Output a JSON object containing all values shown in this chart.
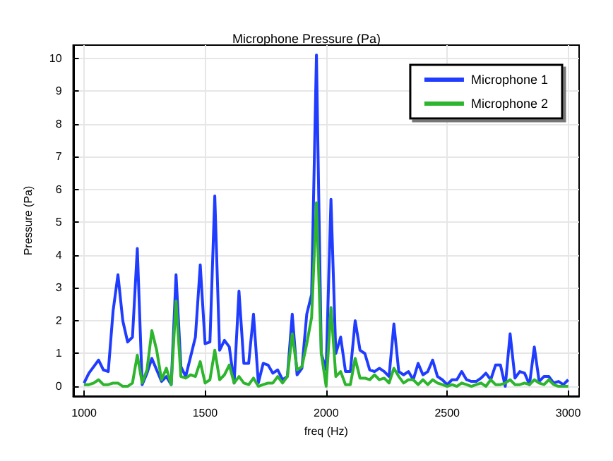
{
  "chart_data": {
    "type": "line",
    "title": "Microphone Pressure (Pa)",
    "xlabel": "freq (Hz)",
    "ylabel": "Pressure (Pa)",
    "x": [
      1000,
      1020,
      1040,
      1060,
      1080,
      1100,
      1120,
      1140,
      1160,
      1180,
      1200,
      1220,
      1240,
      1260,
      1280,
      1300,
      1320,
      1340,
      1360,
      1380,
      1400,
      1420,
      1440,
      1460,
      1480,
      1500,
      1520,
      1540,
      1560,
      1580,
      1600,
      1620,
      1640,
      1660,
      1680,
      1700,
      1720,
      1740,
      1760,
      1780,
      1800,
      1820,
      1840,
      1860,
      1880,
      1900,
      1920,
      1940,
      1960,
      1980,
      2000,
      2020,
      2040,
      2060,
      2080,
      2100,
      2120,
      2140,
      2160,
      2180,
      2200,
      2220,
      2240,
      2260,
      2280,
      2300,
      2320,
      2340,
      2360,
      2380,
      2400,
      2420,
      2440,
      2460,
      2480,
      2500,
      2520,
      2540,
      2560,
      2580,
      2600,
      2620,
      2640,
      2660,
      2680,
      2700,
      2720,
      2740,
      2760,
      2780,
      2800,
      2820,
      2840,
      2860,
      2880,
      2900,
      2920,
      2940,
      2960,
      2980,
      3000
    ],
    "series": [
      {
        "name": "Microphone 1",
        "color": "#1f3cff",
        "values": [
          0.1,
          0.4,
          0.6,
          0.8,
          0.5,
          0.45,
          2.3,
          3.4,
          2.0,
          1.35,
          1.5,
          4.2,
          0.05,
          0.4,
          0.85,
          0.5,
          0.15,
          0.3,
          0.05,
          3.4,
          0.6,
          0.3,
          0.9,
          1.5,
          3.7,
          1.3,
          1.35,
          5.8,
          1.1,
          1.4,
          1.2,
          0.1,
          2.9,
          0.7,
          0.7,
          2.2,
          0.1,
          0.7,
          0.65,
          0.4,
          0.5,
          0.2,
          0.3,
          2.2,
          0.35,
          0.55,
          2.2,
          2.8,
          10.1,
          1.0,
          0.5,
          5.7,
          1.0,
          1.5,
          0.45,
          0.45,
          2.0,
          1.1,
          1.0,
          0.5,
          0.45,
          0.55,
          0.45,
          0.3,
          1.9,
          0.45,
          0.35,
          0.45,
          0.2,
          0.7,
          0.35,
          0.45,
          0.8,
          0.3,
          0.2,
          0.05,
          0.2,
          0.2,
          0.45,
          0.2,
          0.15,
          0.15,
          0.25,
          0.4,
          0.2,
          0.65,
          0.65,
          0.0,
          1.6,
          0.25,
          0.45,
          0.4,
          0.05,
          1.2,
          0.15,
          0.3,
          0.3,
          0.1,
          0.15,
          0.05,
          0.2
        ]
      },
      {
        "name": "Microphone 2",
        "color": "#2db52d",
        "values": [
          0.05,
          0.05,
          0.1,
          0.2,
          0.05,
          0.05,
          0.1,
          0.1,
          0.0,
          0.0,
          0.1,
          0.95,
          0.1,
          0.5,
          1.7,
          1.1,
          0.2,
          0.55,
          0.05,
          2.6,
          0.3,
          0.25,
          0.35,
          0.3,
          0.75,
          0.1,
          0.2,
          1.1,
          0.2,
          0.35,
          0.65,
          0.1,
          0.3,
          0.1,
          0.05,
          0.25,
          0.0,
          0.05,
          0.1,
          0.1,
          0.3,
          0.1,
          0.3,
          1.6,
          0.5,
          0.6,
          1.3,
          2.1,
          5.6,
          1.0,
          0.0,
          2.4,
          0.3,
          0.45,
          0.05,
          0.05,
          0.85,
          0.25,
          0.25,
          0.2,
          0.35,
          0.2,
          0.25,
          0.1,
          0.55,
          0.3,
          0.1,
          0.2,
          0.2,
          0.05,
          0.2,
          0.05,
          0.2,
          0.1,
          0.05,
          0.0,
          0.05,
          0.0,
          0.1,
          0.05,
          0.0,
          0.05,
          0.1,
          0.0,
          0.2,
          0.05,
          0.05,
          0.1,
          0.2,
          0.05,
          0.05,
          0.1,
          0.05,
          0.2,
          0.1,
          0.05,
          0.2,
          0.05,
          0.0,
          0.0,
          0.0
        ]
      }
    ],
    "xlim": [
      955,
      3045
    ],
    "xticks": [
      1000,
      1500,
      2000,
      2500,
      3000
    ],
    "ylim": [
      -0.3,
      10.4
    ],
    "yticks": [
      0,
      1,
      2,
      3,
      4,
      5,
      6,
      7,
      8,
      9,
      10
    ],
    "grid": true,
    "legend": "top right",
    "marker": "none",
    "line_style": "solid"
  }
}
